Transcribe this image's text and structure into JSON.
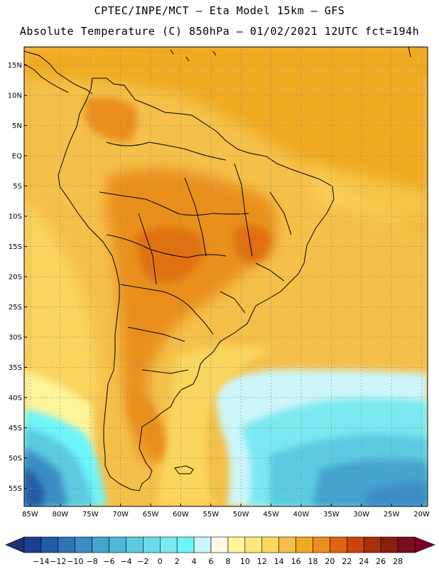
{
  "header": {
    "line1": "CPTEC/INPE/MCT —  Eta Model 15km — GFS",
    "line2": "Absolute Temperature (C) 850hPa — 01/02/2021 12UTC fct=194h"
  },
  "map": {
    "lon_range": [
      -86,
      -19
    ],
    "lat_range": [
      -58,
      18
    ],
    "lat_labels": [
      "15N",
      "10N",
      "5N",
      "EQ",
      "5S",
      "10S",
      "15S",
      "20S",
      "25S",
      "30S",
      "35S",
      "40S",
      "45S",
      "50S",
      "55S"
    ],
    "lat_values": [
      15,
      10,
      5,
      0,
      -5,
      -10,
      -15,
      -20,
      -25,
      -30,
      -35,
      -40,
      -45,
      -50,
      -55
    ],
    "lon_labels": [
      "85W",
      "80W",
      "75W",
      "70W",
      "65W",
      "60W",
      "55W",
      "50W",
      "45W",
      "40W",
      "35W",
      "30W",
      "25W",
      "20W"
    ],
    "lon_values": [
      -85,
      -80,
      -75,
      -70,
      -65,
      -60,
      -55,
      -50,
      -45,
      -40,
      -35,
      -30,
      -25,
      -20
    ],
    "grid": true
  },
  "colorbar": {
    "labels": [
      "-14",
      "-12",
      "-10",
      "-8",
      "-6",
      "-4",
      "-2",
      "0",
      "2",
      "4",
      "6",
      "8",
      "10",
      "12",
      "14",
      "16",
      "18",
      "20",
      "22",
      "24",
      "26",
      "28"
    ],
    "colors": [
      "#1c3f8f",
      "#245aa4",
      "#2f74b6",
      "#3b8cc4",
      "#45a3cf",
      "#4fb8d8",
      "#5ccbe0",
      "#6bdcea",
      "#7ae9f1",
      "#6ef5fb",
      "#ccf6fa",
      "#fff8e3",
      "#fef59a",
      "#fde77b",
      "#fad65e",
      "#f5c04a",
      "#f0aa22",
      "#ea8f1f",
      "#de6411",
      "#c9450b",
      "#a82f0b",
      "#8b1e0c",
      "#7a0d1f"
    ],
    "left_arrow": "#1c3278",
    "right_arrow": "#7a0024"
  }
}
